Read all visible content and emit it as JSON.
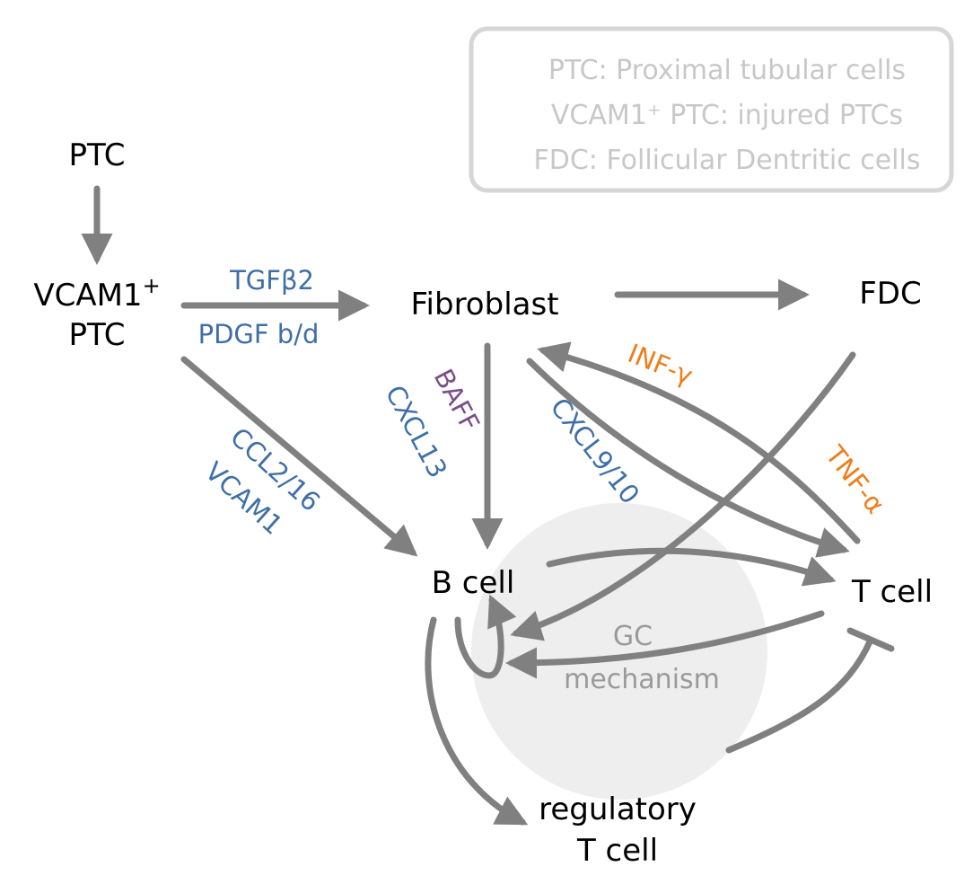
{
  "legend": {
    "lines": [
      "PTC: Proximal tubular cells",
      "VCAM1⁺ PTC: injured PTCs",
      "FDC: Follicular Dentritic cells"
    ]
  },
  "nodes": {
    "ptc": "PTC",
    "vcam1_ptc_line1": "VCAM1",
    "vcam1_ptc_sup": "+",
    "vcam1_ptc_line2": "PTC",
    "fibroblast": "Fibroblast",
    "fdc": "FDC",
    "b_cell": "B cell",
    "t_cell": "T cell",
    "treg_line1": "regulatory",
    "treg_line2": "T cell"
  },
  "gc_region": {
    "line1": "GC",
    "line2": "mechanism"
  },
  "edge_labels": {
    "tgfb2": "TGFβ2",
    "pdgf": "PDGF b/d",
    "ccl2_16": "CCL2/16",
    "vcam1": "VCAM1",
    "baff": "BAFF",
    "cxcl13": "CXCL13",
    "cxcl9_10": "CXCL9/10",
    "inf_gamma": "INF-γ",
    "tnf_alpha": "TNF-α"
  },
  "colors": {
    "edge": "#808080",
    "blue_label": "#3f6fa7",
    "purple_label": "#7a4e8a",
    "orange_label": "#ef7d1a",
    "legend_text": "#c8c8c8",
    "gc_fill": "#eeeeee"
  }
}
